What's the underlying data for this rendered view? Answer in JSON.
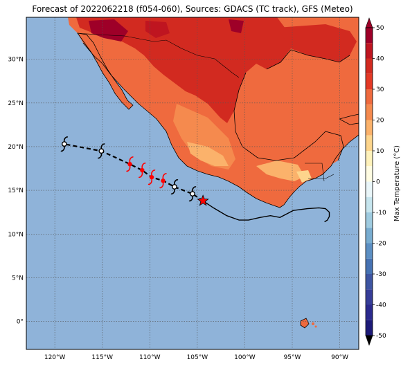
{
  "title": "Forecast of 2022062218 (f054-060), Sources: GDACS (TC track), GFS (Meteo)",
  "map": {
    "lon_range": [
      -123,
      -88
    ],
    "lat_range": [
      -3.2,
      34.8
    ],
    "ocean_color": "#8fb3d9",
    "lon_ticks": [
      {
        "value": -120,
        "label": "120°W"
      },
      {
        "value": -115,
        "label": "115°W"
      },
      {
        "value": -110,
        "label": "110°W"
      },
      {
        "value": -105,
        "label": "105°W"
      },
      {
        "value": -100,
        "label": "100°W"
      },
      {
        "value": -95,
        "label": "95°W"
      },
      {
        "value": -90,
        "label": "90°W"
      }
    ],
    "lat_ticks": [
      {
        "value": 30,
        "label": "30°N"
      },
      {
        "value": 25,
        "label": "25°N"
      },
      {
        "value": 20,
        "label": "20°N"
      },
      {
        "value": 15,
        "label": "15°N"
      },
      {
        "value": 10,
        "label": "10°N"
      },
      {
        "value": 5,
        "label": "5°N"
      },
      {
        "value": 0,
        "label": "0°"
      }
    ]
  },
  "cyclone_track": {
    "current_position": {
      "lon": -104.4,
      "lat": 13.8,
      "marker": "star",
      "color": "#ff0000"
    },
    "forecast_points": [
      {
        "lon": -105.5,
        "lat": 14.6,
        "color": "#000000",
        "symbol": "tropical-storm-icon"
      },
      {
        "lon": -107.4,
        "lat": 15.4,
        "color": "#000000",
        "symbol": "tropical-storm-icon"
      },
      {
        "lon": -108.6,
        "lat": 16.1,
        "color": "#ff0000",
        "symbol": "hurricane-icon"
      },
      {
        "lon": -109.8,
        "lat": 16.5,
        "color": "#ff0000",
        "symbol": "hurricane-icon"
      },
      {
        "lon": -110.8,
        "lat": 17.3,
        "color": "#ff0000",
        "symbol": "hurricane-icon"
      },
      {
        "lon": -112.1,
        "lat": 18.0,
        "color": "#ff0000",
        "symbol": "hurricane-icon"
      },
      {
        "lon": -115.1,
        "lat": 19.5,
        "color": "#000000",
        "symbol": "tropical-storm-icon"
      },
      {
        "lon": -119.0,
        "lat": 20.3,
        "color": "#000000",
        "symbol": "tropical-storm-icon"
      }
    ],
    "past_track": [
      [
        -104.4,
        13.8
      ],
      [
        -103.3,
        13.0
      ],
      [
        -101.9,
        12.1
      ],
      [
        -100.6,
        11.6
      ],
      [
        -99.6,
        11.6
      ],
      [
        -98.4,
        11.9
      ],
      [
        -97.3,
        12.1
      ],
      [
        -96.3,
        11.9
      ],
      [
        -95.4,
        12.4
      ],
      [
        -94.9,
        12.7
      ],
      [
        -93.4,
        12.9
      ],
      [
        -92.2,
        13.0
      ],
      [
        -91.5,
        12.9
      ],
      [
        -91.1,
        12.5
      ],
      [
        -91.1,
        12.0
      ],
      [
        -91.3,
        11.6
      ],
      [
        -91.6,
        11.4
      ]
    ]
  },
  "colorbar": {
    "label": "Max Temperature (°C)",
    "min": -50,
    "max": 50,
    "ticks": [
      50,
      40,
      30,
      20,
      10,
      0,
      -10,
      -20,
      -30,
      -40,
      -50
    ],
    "levels": [
      {
        "from": 45,
        "to": 50,
        "color": "#9e0028"
      },
      {
        "from": 40,
        "to": 45,
        "color": "#bf1520"
      },
      {
        "from": 35,
        "to": 40,
        "color": "#d22a20"
      },
      {
        "from": 30,
        "to": 35,
        "color": "#e43925"
      },
      {
        "from": 25,
        "to": 30,
        "color": "#ef6a3e"
      },
      {
        "from": 20,
        "to": 25,
        "color": "#f58a4e"
      },
      {
        "from": 15,
        "to": 20,
        "color": "#fbb26b"
      },
      {
        "from": 10,
        "to": 15,
        "color": "#fdd58c"
      },
      {
        "from": 5,
        "to": 10,
        "color": "#fff2bb"
      },
      {
        "from": 0,
        "to": 5,
        "color": "#fffce2"
      },
      {
        "from": -5,
        "to": 0,
        "color": "#eaf6f9"
      },
      {
        "from": -10,
        "to": -5,
        "color": "#c6e5ee"
      },
      {
        "from": -15,
        "to": -10,
        "color": "#9fcbe0"
      },
      {
        "from": -20,
        "to": -15,
        "color": "#78acd0"
      },
      {
        "from": -25,
        "to": -20,
        "color": "#5c8fc3"
      },
      {
        "from": -30,
        "to": -25,
        "color": "#4672b3"
      },
      {
        "from": -35,
        "to": -30,
        "color": "#3e55a2"
      },
      {
        "from": -40,
        "to": -35,
        "color": "#363d98"
      },
      {
        "from": -45,
        "to": -40,
        "color": "#2b2a8e"
      },
      {
        "from": -50,
        "to": -45,
        "color": "#1d1a78"
      }
    ]
  }
}
